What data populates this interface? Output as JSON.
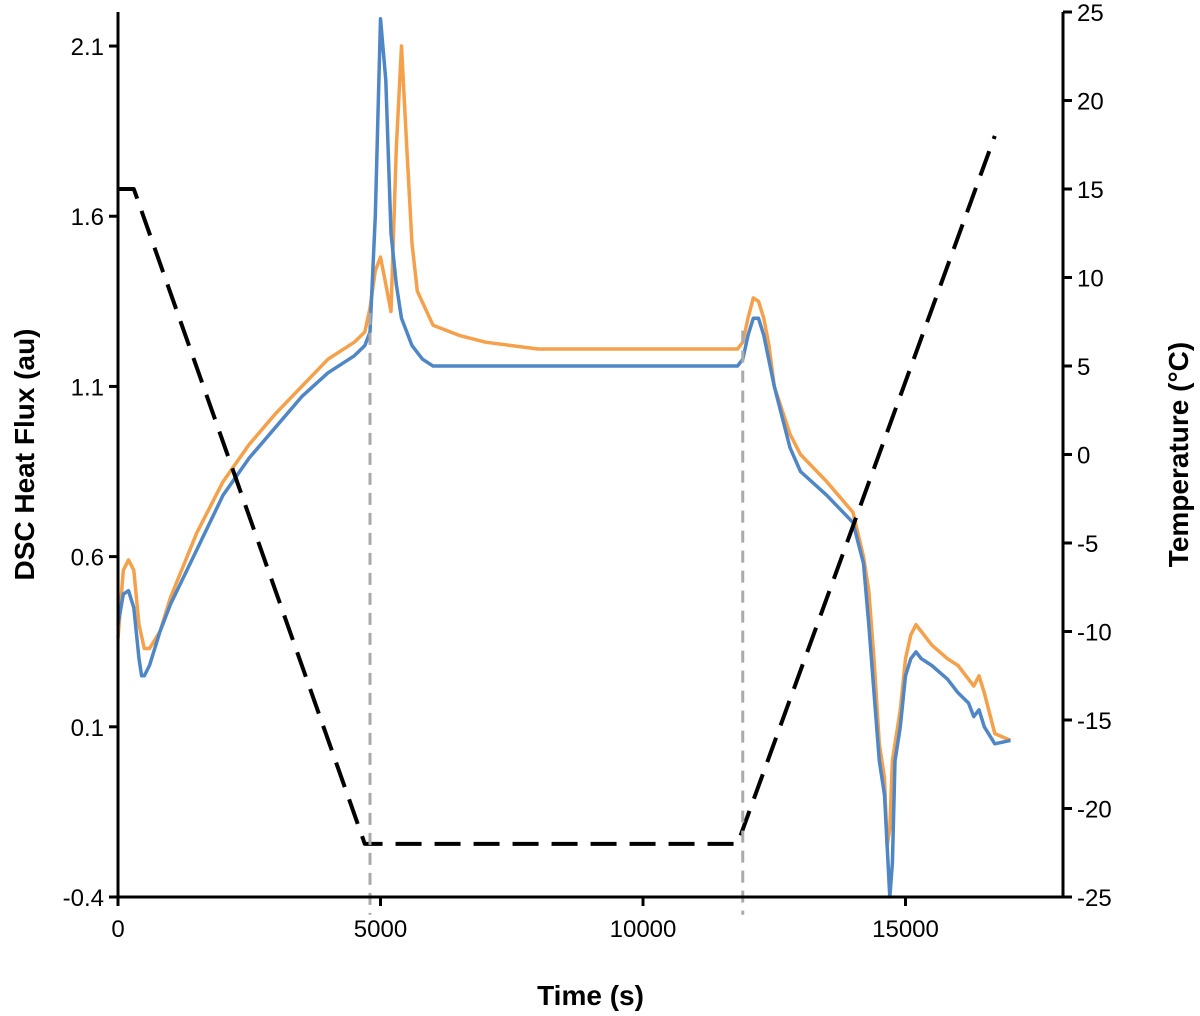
{
  "chart_data": {
    "type": "line",
    "xlabel": "Time (s)",
    "ylabel": "DSC Heat Flux (au)",
    "y2label": "Temperature (°C)",
    "xlim": [
      0,
      18000
    ],
    "ylim": [
      -0.4,
      2.2
    ],
    "y2lim": [
      -25,
      25
    ],
    "grid": false,
    "legend": "none",
    "x_ticks": [
      "0",
      "5000",
      "10000",
      "15000"
    ],
    "x_tick_values": [
      0,
      5000,
      10000,
      15000
    ],
    "y_ticks": [
      "-0.4",
      "0.1",
      "0.6",
      "1.1",
      "1.6",
      "2.1"
    ],
    "y_tick_values": [
      -0.4,
      0.1,
      0.6,
      1.1,
      1.6,
      2.1
    ],
    "y2_ticks": [
      "-25",
      "-20",
      "-15",
      "-10",
      "-5",
      "0",
      "5",
      "10",
      "15",
      "20",
      "25"
    ],
    "y2_tick_values": [
      -25,
      -20,
      -15,
      -10,
      -5,
      0,
      5,
      10,
      15,
      20,
      25
    ],
    "series": [
      {
        "axis": "left",
        "color": "#f5a04a",
        "style": "solid",
        "x": [
          0,
          100,
          200,
          300,
          400,
          500,
          600,
          800,
          1000,
          1500,
          2000,
          2500,
          3000,
          3500,
          4000,
          4500,
          4700,
          4800,
          4900,
          5000,
          5100,
          5200,
          5300,
          5400,
          5500,
          5600,
          5700,
          6000,
          6500,
          7000,
          7500,
          8000,
          9000,
          10000,
          11000,
          11800,
          11900,
          12000,
          12100,
          12200,
          12300,
          12400,
          12500,
          12800,
          13000,
          13500,
          14000,
          14200,
          14300,
          14400,
          14500,
          14600,
          14650,
          14700,
          14750,
          14800,
          14900,
          15000,
          15100,
          15200,
          15300,
          15500,
          15800,
          16000,
          16200,
          16300,
          16400,
          16500,
          16700,
          17000
        ],
        "y": [
          0.36,
          0.56,
          0.59,
          0.56,
          0.4,
          0.33,
          0.33,
          0.38,
          0.48,
          0.67,
          0.82,
          0.93,
          1.02,
          1.1,
          1.18,
          1.23,
          1.26,
          1.33,
          1.44,
          1.48,
          1.4,
          1.32,
          1.8,
          2.1,
          1.8,
          1.52,
          1.38,
          1.28,
          1.25,
          1.23,
          1.22,
          1.21,
          1.21,
          1.21,
          1.21,
          1.21,
          1.23,
          1.3,
          1.36,
          1.35,
          1.3,
          1.22,
          1.1,
          0.96,
          0.9,
          0.82,
          0.73,
          0.6,
          0.5,
          0.3,
          0.05,
          -0.05,
          -0.25,
          -0.2,
          0.0,
          0.05,
          0.15,
          0.3,
          0.37,
          0.4,
          0.38,
          0.34,
          0.3,
          0.28,
          0.24,
          0.22,
          0.25,
          0.2,
          0.08,
          0.06
        ]
      },
      {
        "axis": "left",
        "color": "#4f86c6",
        "style": "solid",
        "x": [
          0,
          100,
          200,
          300,
          400,
          450,
          500,
          600,
          800,
          1000,
          1500,
          2000,
          2500,
          3000,
          3500,
          4000,
          4500,
          4700,
          4800,
          4900,
          5000,
          5100,
          5200,
          5300,
          5400,
          5500,
          5600,
          5800,
          6000,
          6500,
          7000,
          8000,
          9000,
          10000,
          11000,
          11800,
          11900,
          12000,
          12100,
          12200,
          12300,
          12500,
          12800,
          13000,
          13500,
          14000,
          14200,
          14300,
          14400,
          14500,
          14600,
          14700,
          14750,
          14800,
          14900,
          15000,
          15100,
          15200,
          15300,
          15500,
          15800,
          16000,
          16200,
          16300,
          16400,
          16500,
          16700,
          17000
        ],
        "y": [
          0.4,
          0.49,
          0.5,
          0.45,
          0.3,
          0.25,
          0.25,
          0.28,
          0.38,
          0.46,
          0.62,
          0.78,
          0.89,
          0.98,
          1.07,
          1.14,
          1.19,
          1.22,
          1.26,
          1.6,
          2.18,
          2.0,
          1.55,
          1.4,
          1.3,
          1.26,
          1.22,
          1.18,
          1.16,
          1.16,
          1.16,
          1.16,
          1.16,
          1.16,
          1.16,
          1.16,
          1.18,
          1.25,
          1.3,
          1.3,
          1.25,
          1.1,
          0.92,
          0.85,
          0.78,
          0.7,
          0.58,
          0.4,
          0.2,
          0.0,
          -0.1,
          -0.4,
          -0.3,
          0.0,
          0.1,
          0.25,
          0.3,
          0.32,
          0.3,
          0.28,
          0.24,
          0.2,
          0.17,
          0.13,
          0.15,
          0.1,
          0.05,
          0.06
        ]
      },
      {
        "axis": "right",
        "color": "#000000",
        "style": "dashed",
        "x": [
          0,
          300,
          4700,
          11800,
          16700
        ],
        "y": [
          15,
          15,
          -22,
          -22,
          18
        ]
      }
    ],
    "vlines": [
      {
        "x": 4800,
        "y2_from": -26,
        "y2_to": 8,
        "color": "#aaaaaa",
        "style": "dashed"
      },
      {
        "x": 11900,
        "y2_from": -26,
        "y2_to": 7,
        "color": "#aaaaaa",
        "style": "dashed"
      }
    ]
  }
}
